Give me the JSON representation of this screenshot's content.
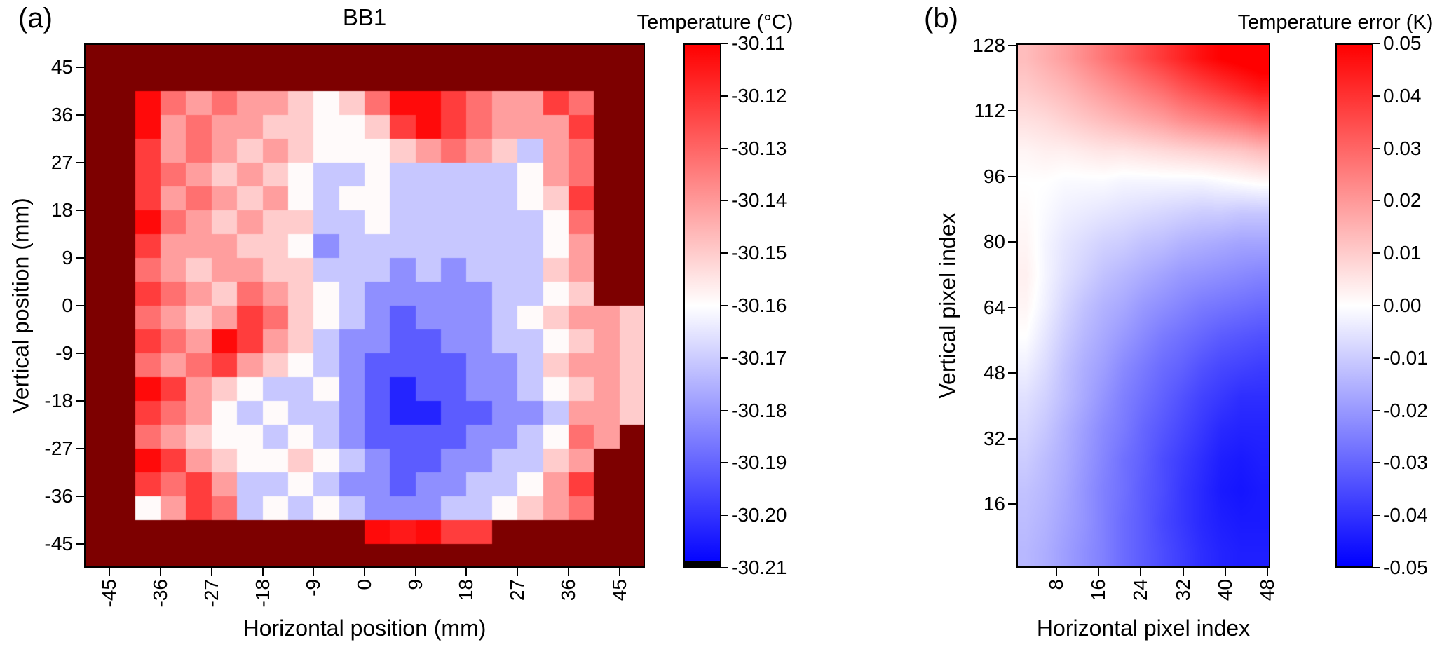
{
  "figure": {
    "panel_a_label": "(a)",
    "panel_b_label": "(b)",
    "background": "#ffffff"
  },
  "chart_data": [
    {
      "type": "heatmap",
      "panel": "a",
      "title": "BB1",
      "xlabel": "Horizontal position (mm)",
      "ylabel": "Vertical position (mm)",
      "x_range": [
        -49.5,
        49.5
      ],
      "y_range": [
        -49.5,
        49.5
      ],
      "x_ticks": [
        -45,
        -36,
        -27,
        -18,
        -9,
        0,
        9,
        18,
        27,
        36,
        45
      ],
      "y_ticks": [
        45,
        36,
        27,
        18,
        9,
        0,
        -9,
        -18,
        -27,
        -36,
        -45
      ],
      "cell_size_mm": 4.5,
      "grid_on": false,
      "colorbar": {
        "title": "Temperature (°C)",
        "vmin": -30.21,
        "vmax": -30.11,
        "tick_labels": [
          "-30.11",
          "-30.12",
          "-30.13",
          "-30.14",
          "-30.15",
          "-30.16",
          "-30.17",
          "-30.18",
          "-30.19",
          "-30.20",
          "-30.21"
        ]
      },
      "colormap": {
        "low": "#0000ff",
        "mid": "#ffffff",
        "high": "#ff0000",
        "over": "#7d0000",
        "under": "#000000"
      },
      "values": [
        [
          -30.0,
          -30.0,
          -30.0,
          -30.0,
          -30.0,
          -30.0,
          -30.0,
          -30.0,
          -30.0,
          -30.0,
          -30.0,
          -30.0,
          -30.0,
          -30.0,
          -30.0,
          -30.0,
          -30.0,
          -30.0,
          -30.0,
          -30.0,
          -30.0,
          -30.0
        ],
        [
          -30.0,
          -30.0,
          -30.0,
          -30.0,
          -30.0,
          -30.0,
          -30.0,
          -30.0,
          -30.0,
          -30.0,
          -30.0,
          -30.0,
          -30.0,
          -30.0,
          -30.0,
          -30.0,
          -30.0,
          -30.0,
          -30.0,
          -30.0,
          -30.0,
          -30.0
        ],
        [
          -30.0,
          -30.0,
          -30.112,
          -30.132,
          -30.141,
          -30.132,
          -30.141,
          -30.141,
          -30.15,
          -30.159,
          -30.15,
          -30.132,
          -30.112,
          -30.112,
          -30.122,
          -30.132,
          -30.141,
          -30.141,
          -30.122,
          -30.132,
          -30.0,
          -30.0
        ],
        [
          -30.0,
          -30.0,
          -30.112,
          -30.141,
          -30.132,
          -30.141,
          -30.141,
          -30.15,
          -30.15,
          -30.159,
          -30.159,
          -30.15,
          -30.122,
          -30.112,
          -30.122,
          -30.132,
          -30.141,
          -30.141,
          -30.141,
          -30.122,
          -30.0,
          -30.0
        ],
        [
          -30.0,
          -30.0,
          -30.122,
          -30.141,
          -30.132,
          -30.141,
          -30.15,
          -30.141,
          -30.15,
          -30.159,
          -30.159,
          -30.159,
          -30.15,
          -30.141,
          -30.132,
          -30.141,
          -30.15,
          -30.171,
          -30.141,
          -30.132,
          -30.0,
          -30.0
        ],
        [
          -30.0,
          -30.0,
          -30.122,
          -30.132,
          -30.141,
          -30.15,
          -30.141,
          -30.15,
          -30.159,
          -30.171,
          -30.171,
          -30.159,
          -30.171,
          -30.171,
          -30.171,
          -30.171,
          -30.171,
          -30.159,
          -30.141,
          -30.132,
          -30.0,
          -30.0
        ],
        [
          -30.0,
          -30.0,
          -30.122,
          -30.141,
          -30.132,
          -30.141,
          -30.15,
          -30.141,
          -30.159,
          -30.171,
          -30.159,
          -30.159,
          -30.171,
          -30.171,
          -30.171,
          -30.171,
          -30.171,
          -30.159,
          -30.15,
          -30.122,
          -30.0,
          -30.0
        ],
        [
          -30.0,
          -30.0,
          -30.112,
          -30.132,
          -30.141,
          -30.15,
          -30.141,
          -30.15,
          -30.15,
          -30.171,
          -30.171,
          -30.159,
          -30.171,
          -30.171,
          -30.171,
          -30.171,
          -30.171,
          -30.171,
          -30.159,
          -30.132,
          -30.0,
          -30.0
        ],
        [
          -30.0,
          -30.0,
          -30.122,
          -30.141,
          -30.141,
          -30.141,
          -30.15,
          -30.15,
          -30.159,
          -30.182,
          -30.171,
          -30.171,
          -30.171,
          -30.171,
          -30.171,
          -30.171,
          -30.171,
          -30.171,
          -30.159,
          -30.141,
          -30.0,
          -30.0
        ],
        [
          -30.0,
          -30.0,
          -30.132,
          -30.141,
          -30.15,
          -30.141,
          -30.141,
          -30.15,
          -30.15,
          -30.171,
          -30.171,
          -30.171,
          -30.182,
          -30.171,
          -30.182,
          -30.171,
          -30.171,
          -30.171,
          -30.15,
          -30.141,
          -30.0,
          -30.0
        ],
        [
          -30.0,
          -30.0,
          -30.122,
          -30.132,
          -30.141,
          -30.15,
          -30.132,
          -30.141,
          -30.15,
          -30.159,
          -30.171,
          -30.182,
          -30.182,
          -30.182,
          -30.182,
          -30.182,
          -30.171,
          -30.171,
          -30.159,
          -30.15,
          -30.0,
          -30.0
        ],
        [
          -30.0,
          -30.0,
          -30.132,
          -30.141,
          -30.15,
          -30.141,
          -30.122,
          -30.132,
          -30.15,
          -30.159,
          -30.171,
          -30.182,
          -30.192,
          -30.182,
          -30.182,
          -30.182,
          -30.171,
          -30.159,
          -30.15,
          -30.141,
          -30.141,
          -30.15
        ],
        [
          -30.0,
          -30.0,
          -30.122,
          -30.132,
          -30.141,
          -30.112,
          -30.122,
          -30.141,
          -30.15,
          -30.171,
          -30.182,
          -30.182,
          -30.192,
          -30.192,
          -30.182,
          -30.182,
          -30.171,
          -30.171,
          -30.159,
          -30.15,
          -30.141,
          -30.15
        ],
        [
          -30.0,
          -30.0,
          -30.132,
          -30.141,
          -30.132,
          -30.122,
          -30.141,
          -30.15,
          -30.159,
          -30.171,
          -30.182,
          -30.192,
          -30.192,
          -30.192,
          -30.192,
          -30.182,
          -30.182,
          -30.171,
          -30.15,
          -30.141,
          -30.141,
          -30.15
        ],
        [
          -30.0,
          -30.0,
          -30.112,
          -30.122,
          -30.141,
          -30.15,
          -30.159,
          -30.171,
          -30.171,
          -30.159,
          -30.182,
          -30.192,
          -30.203,
          -30.192,
          -30.192,
          -30.182,
          -30.182,
          -30.171,
          -30.159,
          -30.15,
          -30.141,
          -30.15
        ],
        [
          -30.0,
          -30.0,
          -30.122,
          -30.132,
          -30.141,
          -30.159,
          -30.171,
          -30.159,
          -30.171,
          -30.171,
          -30.182,
          -30.192,
          -30.203,
          -30.203,
          -30.192,
          -30.192,
          -30.182,
          -30.182,
          -30.171,
          -30.141,
          -30.141,
          -30.15
        ],
        [
          -30.0,
          -30.0,
          -30.132,
          -30.141,
          -30.15,
          -30.159,
          -30.159,
          -30.171,
          -30.159,
          -30.171,
          -30.182,
          -30.192,
          -30.192,
          -30.192,
          -30.192,
          -30.182,
          -30.182,
          -30.171,
          -30.159,
          -30.132,
          -30.141,
          -30.0
        ],
        [
          -30.0,
          -30.0,
          -30.112,
          -30.122,
          -30.141,
          -30.15,
          -30.159,
          -30.159,
          -30.15,
          -30.159,
          -30.171,
          -30.182,
          -30.192,
          -30.192,
          -30.182,
          -30.182,
          -30.171,
          -30.171,
          -30.15,
          -30.141,
          -30.0,
          -30.0
        ],
        [
          -30.0,
          -30.0,
          -30.122,
          -30.132,
          -30.122,
          -30.141,
          -30.171,
          -30.171,
          -30.159,
          -30.171,
          -30.182,
          -30.182,
          -30.192,
          -30.182,
          -30.182,
          -30.171,
          -30.171,
          -30.159,
          -30.141,
          -30.122,
          -30.0,
          -30.0
        ],
        [
          -30.0,
          -30.0,
          -30.159,
          -30.141,
          -30.122,
          -30.132,
          -30.171,
          -30.159,
          -30.171,
          -30.159,
          -30.171,
          -30.182,
          -30.182,
          -30.182,
          -30.171,
          -30.171,
          -30.159,
          -30.15,
          -30.141,
          -30.132,
          -30.0,
          -30.0
        ],
        [
          -30.0,
          -30.0,
          -30.0,
          -30.0,
          -30.0,
          -30.0,
          -30.0,
          -30.0,
          -30.0,
          -30.0,
          -30.0,
          -30.112,
          -30.115,
          -30.112,
          -30.122,
          -30.122,
          -30.0,
          -30.0,
          -30.0,
          -30.0,
          -30.0,
          -30.0
        ],
        [
          -30.0,
          -30.0,
          -30.0,
          -30.0,
          -30.0,
          -30.0,
          -30.0,
          -30.0,
          -30.0,
          -30.0,
          -30.0,
          -30.0,
          -30.0,
          -30.0,
          -30.0,
          -30.0,
          -30.0,
          -30.0,
          -30.0,
          -30.0,
          -30.0,
          -30.0
        ]
      ]
    },
    {
      "type": "heatmap",
      "panel": "b",
      "title": "",
      "xlabel": "Horizontal pixel index",
      "ylabel": "Vertical pixel index",
      "x_range": [
        0.5,
        48.5
      ],
      "y_range": [
        0.5,
        128.5
      ],
      "x_ticks": [
        8,
        16,
        24,
        32,
        40,
        48
      ],
      "y_ticks": [
        128,
        112,
        96,
        80,
        64,
        48,
        32,
        16
      ],
      "smooth": true,
      "grid_on": false,
      "grid_x": [
        2,
        6,
        10,
        14,
        18,
        21,
        25,
        29,
        33,
        37,
        40,
        44,
        48
      ],
      "grid_y": [
        128,
        120.5,
        113,
        105.5,
        98,
        90.5,
        83,
        75.5,
        68,
        60.5,
        53,
        45.5,
        38,
        30.5,
        23,
        15.5,
        8
      ],
      "colorbar": {
        "title": "Temperature error (K)",
        "vmin": -0.05,
        "vmax": 0.05,
        "tick_labels": [
          "0.05",
          "0.04",
          "0.03",
          "0.02",
          "0.01",
          "0.00",
          "-0.01",
          "-0.02",
          "-0.03",
          "-0.04",
          "-0.05"
        ]
      },
      "colormap": {
        "low": "#0000ff",
        "mid": "#ffffff",
        "high": "#ff0000"
      },
      "values": [
        [
          0.013,
          0.016,
          0.019,
          0.023,
          0.027,
          0.031,
          0.035,
          0.039,
          0.043,
          0.047,
          0.05,
          0.052,
          0.054
        ],
        [
          0.01,
          0.012,
          0.014,
          0.017,
          0.02,
          0.023,
          0.026,
          0.029,
          0.033,
          0.036,
          0.039,
          0.042,
          0.045
        ],
        [
          0.006,
          0.007,
          0.009,
          0.011,
          0.013,
          0.015,
          0.017,
          0.019,
          0.022,
          0.024,
          0.026,
          0.028,
          0.031
        ],
        [
          0.002,
          0.003,
          0.003,
          0.004,
          0.005,
          0.005,
          0.006,
          0.007,
          0.008,
          0.009,
          0.01,
          0.011,
          0.013
        ],
        [
          0.0,
          0.0,
          -0.001,
          -0.001,
          -0.001,
          -0.002,
          -0.002,
          -0.002,
          -0.002,
          -0.002,
          -0.001,
          0.0,
          0.001
        ],
        [
          0.001,
          -0.001,
          -0.003,
          -0.004,
          -0.005,
          -0.006,
          -0.007,
          -0.008,
          -0.009,
          -0.01,
          -0.01,
          -0.011,
          -0.011
        ],
        [
          0.002,
          -0.002,
          -0.005,
          -0.007,
          -0.009,
          -0.01,
          -0.012,
          -0.013,
          -0.015,
          -0.016,
          -0.017,
          -0.018,
          -0.018
        ],
        [
          0.003,
          -0.002,
          -0.006,
          -0.009,
          -0.012,
          -0.014,
          -0.016,
          -0.018,
          -0.02,
          -0.021,
          -0.022,
          -0.023,
          -0.024
        ],
        [
          0.002,
          -0.003,
          -0.008,
          -0.012,
          -0.015,
          -0.017,
          -0.02,
          -0.022,
          -0.024,
          -0.026,
          -0.027,
          -0.028,
          -0.029
        ],
        [
          0.0,
          -0.005,
          -0.01,
          -0.014,
          -0.017,
          -0.02,
          -0.023,
          -0.026,
          -0.028,
          -0.03,
          -0.032,
          -0.033,
          -0.034
        ],
        [
          -0.003,
          -0.007,
          -0.012,
          -0.016,
          -0.019,
          -0.023,
          -0.026,
          -0.029,
          -0.031,
          -0.034,
          -0.036,
          -0.037,
          -0.038
        ],
        [
          -0.006,
          -0.009,
          -0.013,
          -0.017,
          -0.021,
          -0.025,
          -0.028,
          -0.031,
          -0.034,
          -0.037,
          -0.039,
          -0.041,
          -0.041
        ],
        [
          -0.008,
          -0.011,
          -0.015,
          -0.019,
          -0.023,
          -0.026,
          -0.03,
          -0.033,
          -0.036,
          -0.039,
          -0.042,
          -0.043,
          -0.043
        ],
        [
          -0.01,
          -0.013,
          -0.016,
          -0.02,
          -0.024,
          -0.028,
          -0.031,
          -0.035,
          -0.038,
          -0.041,
          -0.044,
          -0.045,
          -0.044
        ],
        [
          -0.012,
          -0.014,
          -0.017,
          -0.021,
          -0.025,
          -0.028,
          -0.032,
          -0.035,
          -0.039,
          -0.042,
          -0.045,
          -0.046,
          -0.045
        ],
        [
          -0.013,
          -0.015,
          -0.018,
          -0.021,
          -0.025,
          -0.029,
          -0.032,
          -0.036,
          -0.039,
          -0.042,
          -0.044,
          -0.045,
          -0.045
        ],
        [
          -0.014,
          -0.016,
          -0.019,
          -0.022,
          -0.025,
          -0.029,
          -0.032,
          -0.035,
          -0.038,
          -0.041,
          -0.043,
          -0.044,
          -0.044
        ]
      ]
    }
  ]
}
